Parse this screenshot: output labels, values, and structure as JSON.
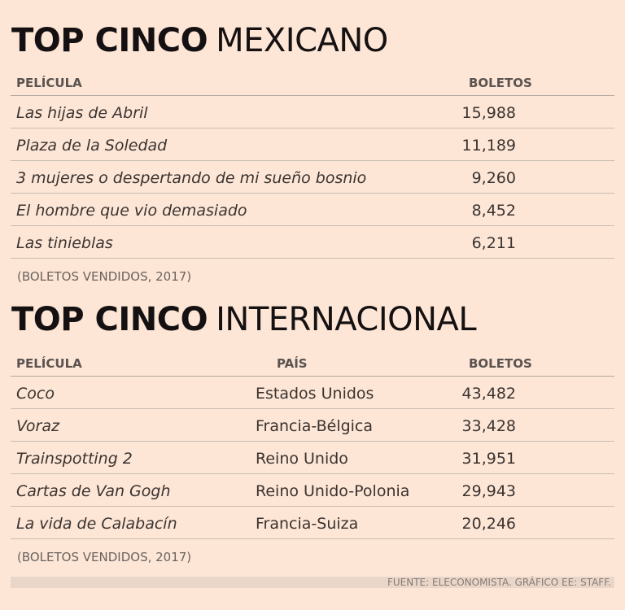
{
  "mexicano": {
    "title_bold": "TOP CINCO",
    "title_light": "MEXICANO",
    "headers": {
      "pelicula": "PELÍCULA",
      "boletos": "BOLETOS"
    },
    "rows": [
      {
        "pelicula": "Las hijas de Abril",
        "boletos": "15,988"
      },
      {
        "pelicula": "Plaza de la Soledad",
        "boletos": "11,189"
      },
      {
        "pelicula": "3 mujeres o despertando de mi sueño bosnio",
        "boletos": "9,260"
      },
      {
        "pelicula": "El hombre que vio demasiado",
        "boletos": "8,452"
      },
      {
        "pelicula": "Las tinieblas",
        "boletos": "6,211"
      }
    ],
    "note": "(BOLETOS VENDIDOS, 2017)"
  },
  "internacional": {
    "title_bold": "TOP CINCO",
    "title_light": "INTERNACIONAL",
    "headers": {
      "pelicula": "PELÍCULA",
      "pais": "PAÍS",
      "boletos": "BOLETOS"
    },
    "rows": [
      {
        "pelicula": "Coco",
        "pais": "Estados Unidos",
        "boletos": "43,482"
      },
      {
        "pelicula": "Voraz",
        "pais": "Francia-Bélgica",
        "boletos": "33,428"
      },
      {
        "pelicula": "Trainspotting 2",
        "pais": "Reino Unido",
        "boletos": "31,951"
      },
      {
        "pelicula": "Cartas de Van Gogh",
        "pais": "Reino Unido-Polonia",
        "boletos": "29,943"
      },
      {
        "pelicula": "La vida de Calabacín",
        "pais": "Francia-Suiza",
        "boletos": "20,246"
      }
    ],
    "note": "(BOLETOS VENDIDOS, 2017)"
  },
  "footer": "FUENTE: ELECONOMISTA.  GRÁFICO EE: STAFF.",
  "colors": {
    "background": "#fde6d6",
    "title": "#151112",
    "footer_bar": "#ead6c9"
  }
}
